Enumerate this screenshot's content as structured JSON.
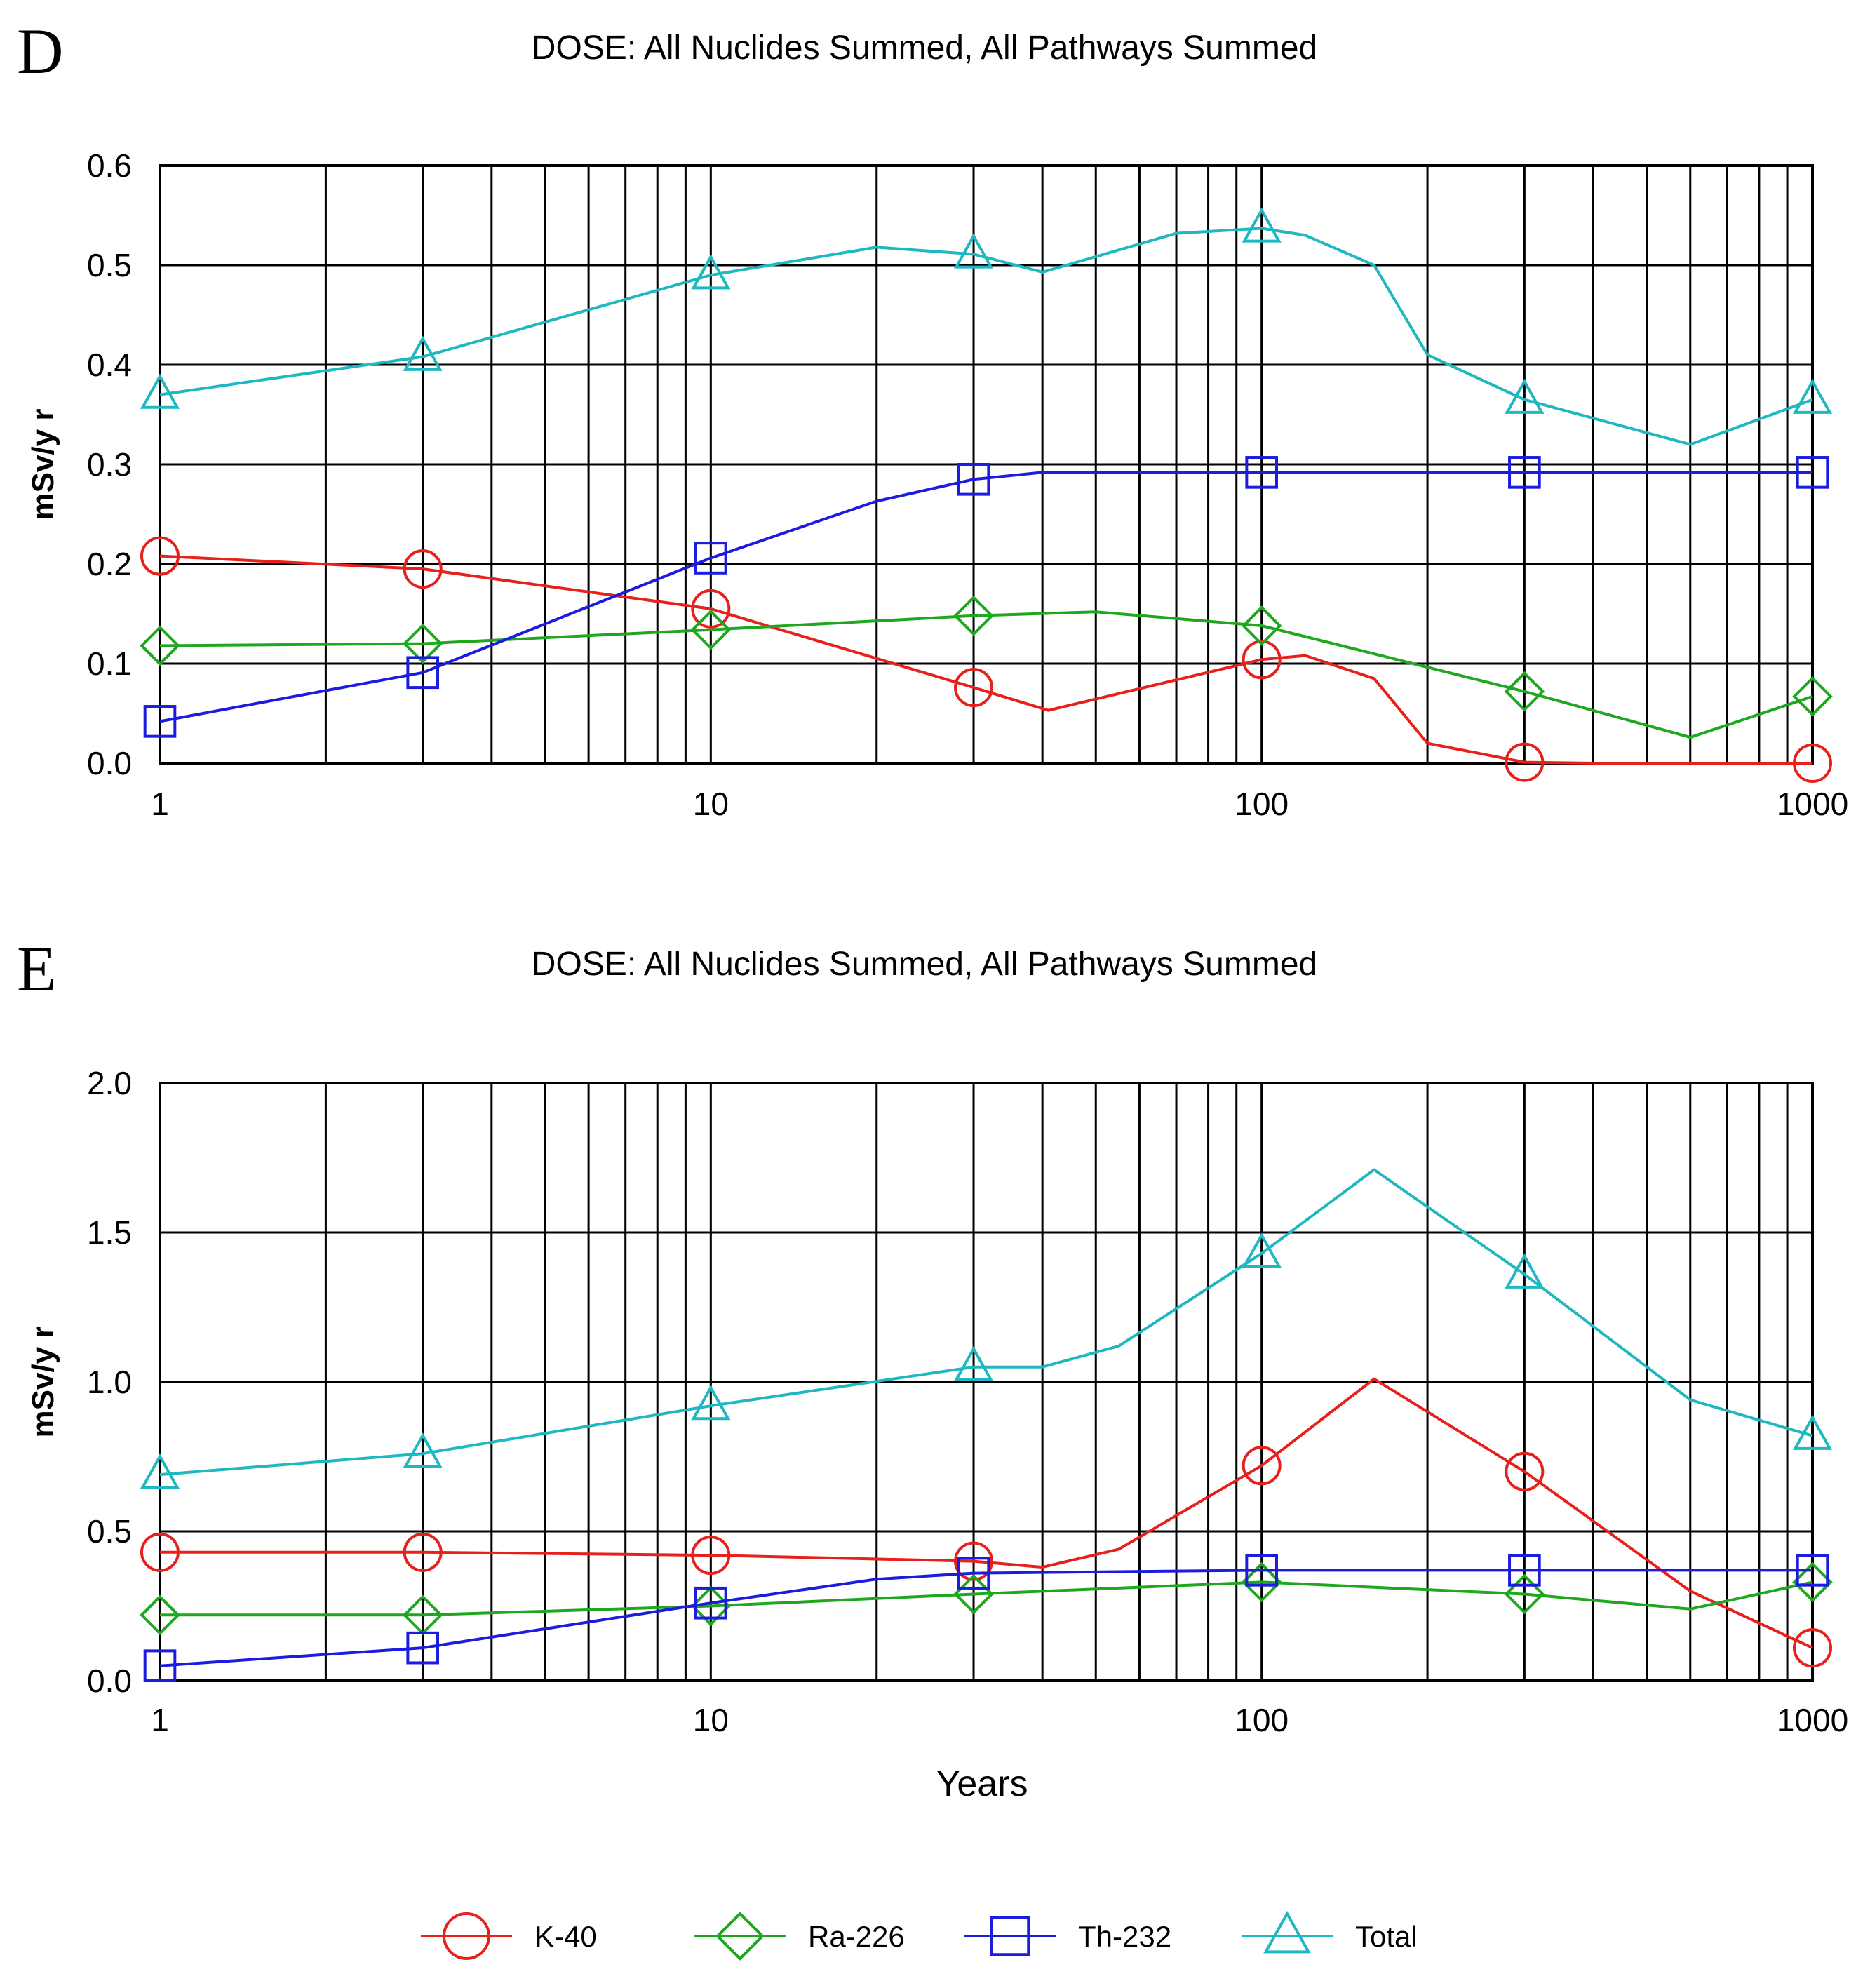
{
  "figure": {
    "legend": [
      {
        "name": "K-40",
        "color": "#e8201b",
        "marker": "circle"
      },
      {
        "name": "Ra-226",
        "color": "#1fa81f",
        "marker": "diamond"
      },
      {
        "name": "Th-232",
        "color": "#1c1ce0",
        "marker": "square"
      },
      {
        "name": "Total",
        "color": "#20b8c0",
        "marker": "triangle"
      }
    ]
  },
  "chart_data": [
    {
      "type": "line",
      "panel_label": "D",
      "title": "DOSE: All Nuclides Summed, All Pathways Summed",
      "xlabel": "",
      "ylabel": "mSv/y r",
      "x_scale": "log",
      "xlim": [
        1,
        1000
      ],
      "ylim": [
        0,
        0.6
      ],
      "x_ticks": [
        "1",
        "10",
        "100",
        "1000"
      ],
      "y_ticks": [
        "0.0",
        "0.1",
        "0.2",
        "0.3",
        "0.4",
        "0.5",
        "0.6"
      ],
      "grid": true,
      "marker_x": [
        1,
        3,
        10,
        30,
        100,
        300,
        1000
      ],
      "series": [
        {
          "name": "K-40",
          "color": "#e8201b",
          "marker": "circle",
          "x": [
            1,
            3,
            10,
            30,
            41,
            100,
            120,
            160,
            200,
            300,
            400,
            1000
          ],
          "y": [
            0.208,
            0.195,
            0.155,
            0.076,
            0.053,
            0.104,
            0.108,
            0.085,
            0.02,
            0.001,
            0.0,
            0.0
          ]
        },
        {
          "name": "Ra-226",
          "color": "#1fa81f",
          "marker": "diamond",
          "x": [
            1,
            3,
            10,
            30,
            50,
            100,
            300,
            600,
            1000
          ],
          "y": [
            0.118,
            0.12,
            0.134,
            0.148,
            0.152,
            0.138,
            0.072,
            0.026,
            0.067
          ]
        },
        {
          "name": "Th-232",
          "color": "#1c1ce0",
          "marker": "square",
          "x": [
            1,
            3,
            10,
            20,
            30,
            40,
            100,
            300,
            1000
          ],
          "y": [
            0.042,
            0.091,
            0.206,
            0.263,
            0.285,
            0.292,
            0.292,
            0.292,
            0.292
          ]
        },
        {
          "name": "Total",
          "color": "#20b8c0",
          "marker": "triangle",
          "x": [
            1,
            3,
            10,
            20,
            30,
            40,
            70,
            100,
            120,
            160,
            200,
            300,
            600,
            1000
          ],
          "y": [
            0.37,
            0.408,
            0.49,
            0.518,
            0.511,
            0.493,
            0.532,
            0.537,
            0.53,
            0.5,
            0.41,
            0.365,
            0.32,
            0.365
          ]
        }
      ]
    },
    {
      "type": "line",
      "panel_label": "E",
      "title": "DOSE: All Nuclides Summed, All Pathways Summed",
      "xlabel": "Years",
      "ylabel": "mSv/y r",
      "x_scale": "log",
      "xlim": [
        1,
        1000
      ],
      "ylim": [
        0,
        2.0
      ],
      "x_ticks": [
        "1",
        "10",
        "100",
        "1000"
      ],
      "y_ticks": [
        "0.0",
        "0.5",
        "1.0",
        "1.5",
        "2.0"
      ],
      "grid": true,
      "marker_x": [
        1,
        3,
        10,
        30,
        100,
        300,
        1000
      ],
      "series": [
        {
          "name": "K-40",
          "color": "#e8201b",
          "marker": "circle",
          "x": [
            1,
            3,
            10,
            30,
            40,
            55,
            100,
            160,
            300,
            600,
            1000
          ],
          "y": [
            0.43,
            0.43,
            0.42,
            0.4,
            0.38,
            0.44,
            0.72,
            1.01,
            0.7,
            0.3,
            0.11
          ]
        },
        {
          "name": "Ra-226",
          "color": "#1fa81f",
          "marker": "diamond",
          "x": [
            1,
            3,
            10,
            30,
            100,
            300,
            600,
            1000
          ],
          "y": [
            0.22,
            0.22,
            0.25,
            0.29,
            0.33,
            0.29,
            0.24,
            0.33
          ]
        },
        {
          "name": "Th-232",
          "color": "#1c1ce0",
          "marker": "square",
          "x": [
            1,
            3,
            10,
            20,
            30,
            100,
            300,
            1000
          ],
          "y": [
            0.05,
            0.11,
            0.26,
            0.34,
            0.36,
            0.37,
            0.37,
            0.37
          ]
        },
        {
          "name": "Total",
          "color": "#20b8c0",
          "marker": "triangle",
          "x": [
            1,
            3,
            10,
            30,
            40,
            55,
            100,
            160,
            300,
            600,
            1000
          ],
          "y": [
            0.69,
            0.76,
            0.92,
            1.05,
            1.05,
            1.12,
            1.43,
            1.71,
            1.36,
            0.94,
            0.82
          ]
        }
      ]
    }
  ]
}
